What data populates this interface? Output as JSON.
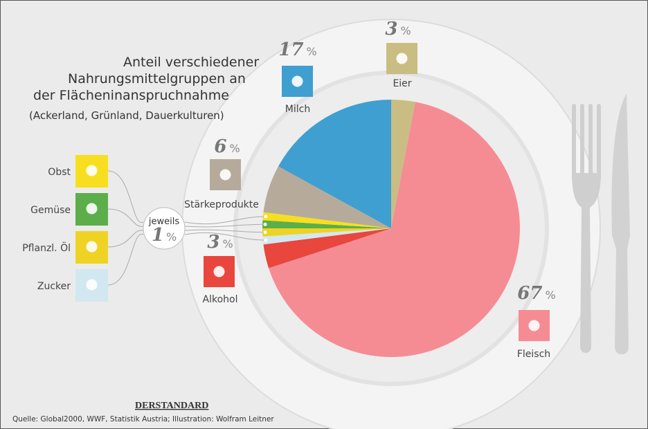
{
  "chart_data": {
    "type": "pie",
    "title_lines": [
      "Anteil verschiedener",
      "Nahrungsmittelgruppen an",
      "der Flächeninanspruchnahme"
    ],
    "subtitle": "(Ackerland, Grünland, Dauerkulturen)",
    "categories": [
      "Eier",
      "Fleisch",
      "Alkohol",
      "Zucker",
      "Pflanzl. Öl",
      "Gemüse",
      "Obst",
      "Stärkeprodukte",
      "Milch"
    ],
    "values": [
      3,
      67,
      3,
      1,
      1,
      1,
      1,
      6,
      17
    ],
    "colors": [
      "#c9bd84",
      "#f58c94",
      "#e9463d",
      "#d2e8f1",
      "#eed324",
      "#5cae4b",
      "#f7df1f",
      "#b6ab9b",
      "#3f9fd0"
    ],
    "unit": "%",
    "group_label": "jeweils",
    "source_logo": "DERSTANDARD",
    "source": "Quelle: Global2000, WWF, Statistik Austria; Illustration: Wolfram Leitner"
  }
}
